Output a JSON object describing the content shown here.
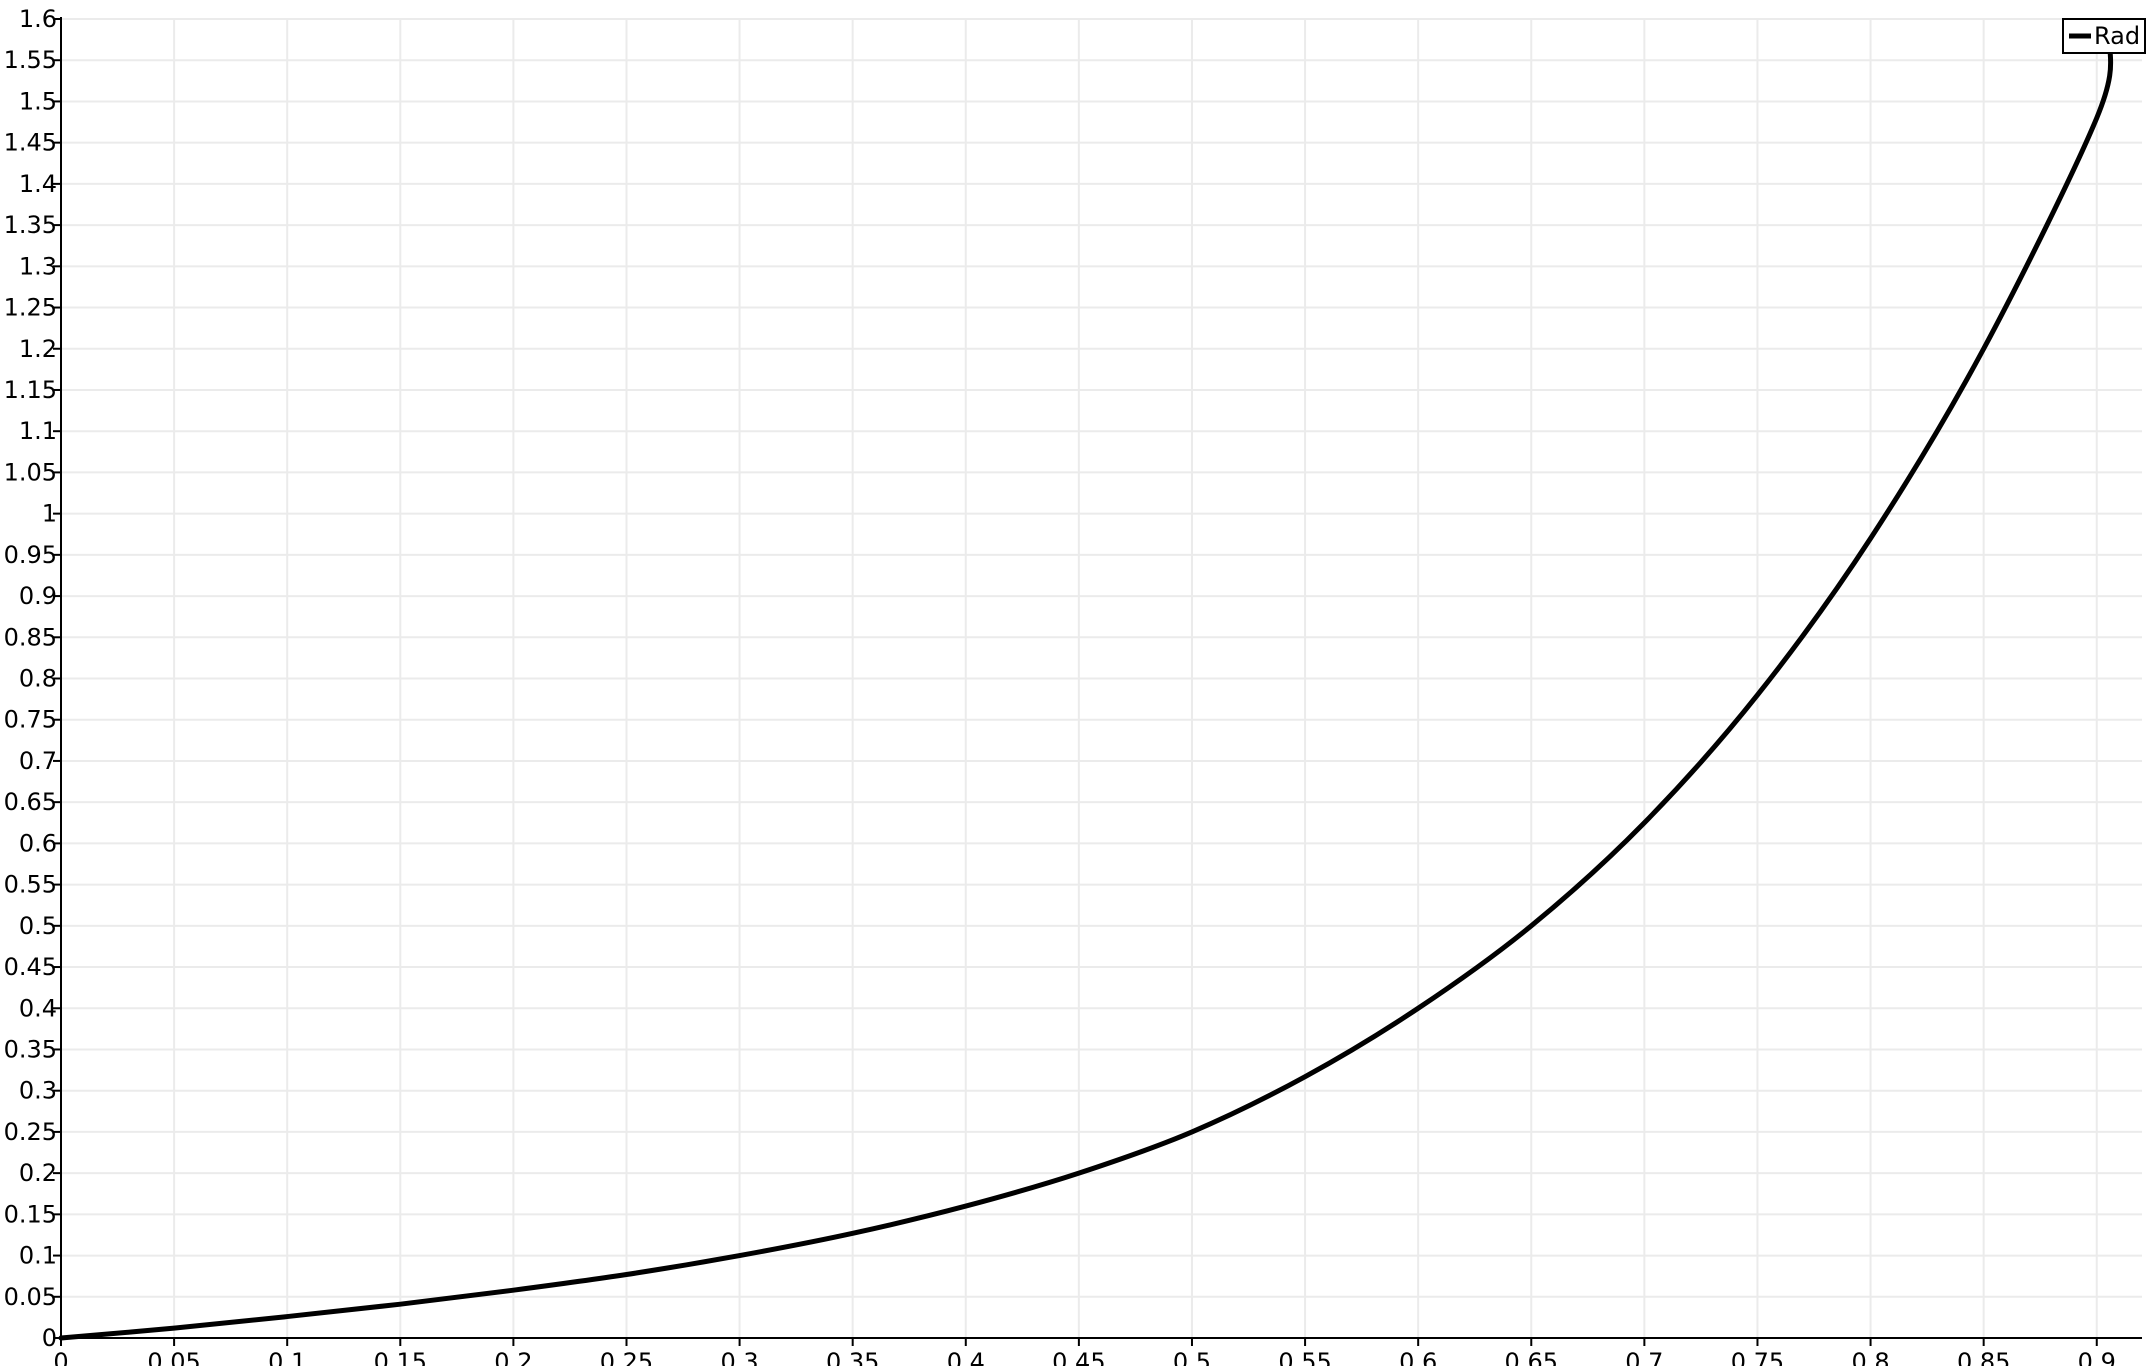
{
  "chart_data": {
    "type": "line",
    "xlim": [
      0,
      0.92
    ],
    "ylim": [
      0,
      1.6
    ],
    "x_ticks": [
      "0",
      "0.05",
      "0.1",
      "0.15",
      "0.2",
      "0.25",
      "0.3",
      "0.35",
      "0.4",
      "0.45",
      "0.5",
      "0.55",
      "0.6",
      "0.65",
      "0.7",
      "0.75",
      "0.8",
      "0.85",
      "0.9"
    ],
    "y_ticks": [
      "0",
      "0.05",
      "0.1",
      "0.15",
      "0.2",
      "0.25",
      "0.3",
      "0.35",
      "0.4",
      "0.45",
      "0.5",
      "0.55",
      "0.6",
      "0.65",
      "0.7",
      "0.75",
      "0.8",
      "0.85",
      "0.9",
      "0.95",
      "1",
      "1.05",
      "1.1",
      "1.15",
      "1.2",
      "1.25",
      "1.3",
      "1.35",
      "1.4",
      "1.45",
      "1.5",
      "1.55",
      "1.6"
    ],
    "grid": true,
    "legend_position": "top-right",
    "series": [
      {
        "name": "Rad",
        "color": "#000000",
        "x": [
          0,
          0.05,
          0.1,
          0.15,
          0.2,
          0.25,
          0.3,
          0.35,
          0.4,
          0.45,
          0.5,
          0.55,
          0.6,
          0.65,
          0.7,
          0.75,
          0.8,
          0.85,
          0.9,
          0.906
        ],
        "y": [
          0,
          0.012,
          0.026,
          0.041,
          0.058,
          0.077,
          0.1,
          0.127,
          0.16,
          0.2,
          0.25,
          0.317,
          0.4,
          0.5,
          0.625,
          0.78,
          0.97,
          1.2,
          1.48,
          1.57
        ]
      }
    ]
  }
}
